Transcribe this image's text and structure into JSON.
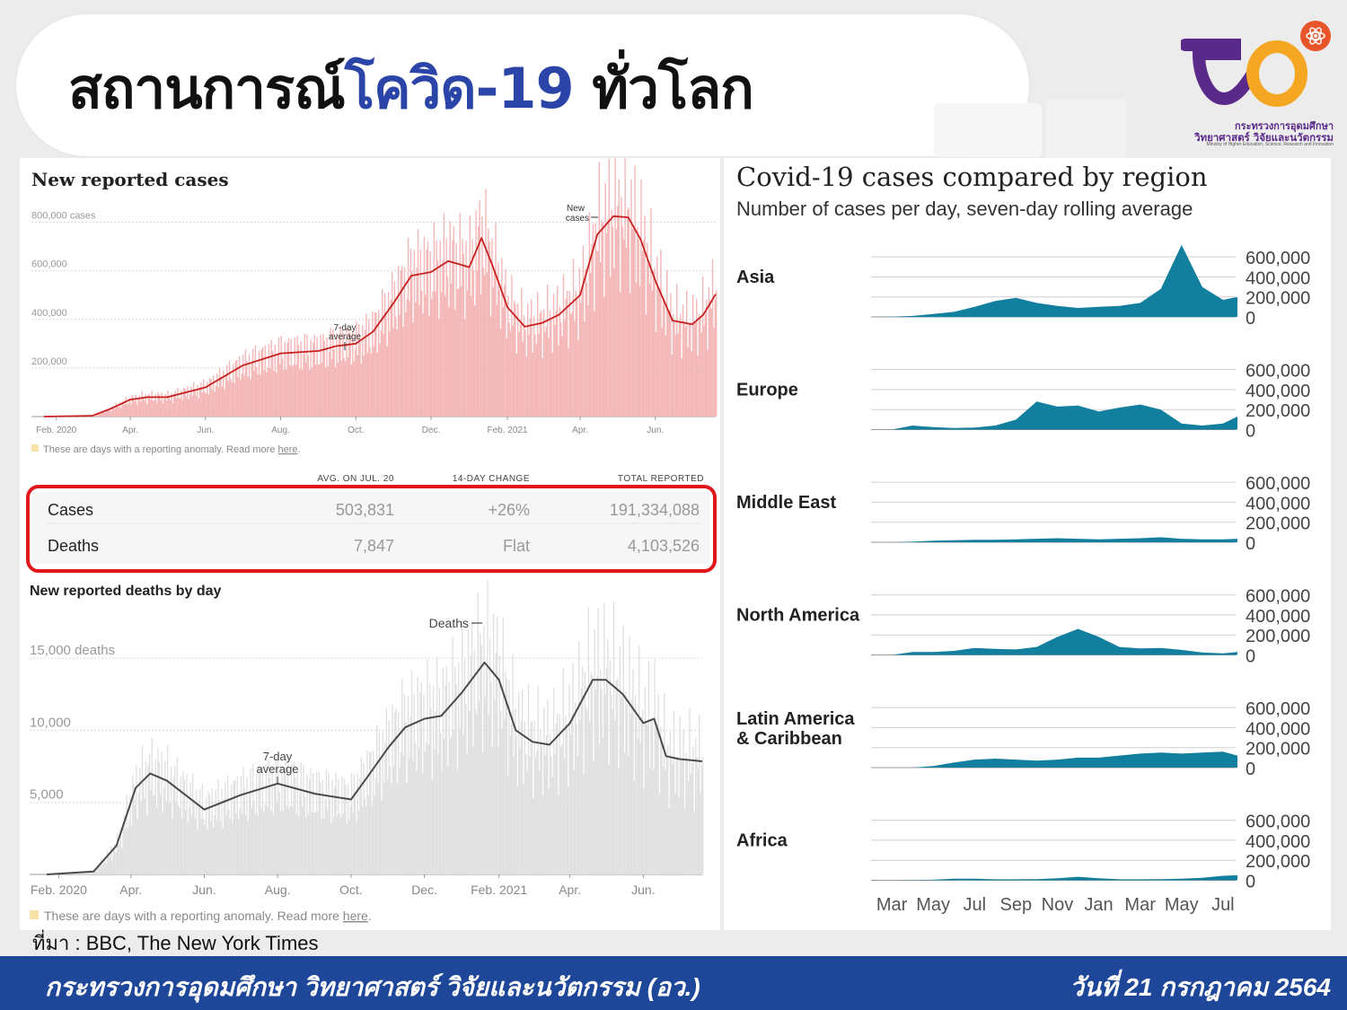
{
  "header": {
    "title_part1": "สถานการณ์",
    "title_part2": "โควิด-19",
    "title_part3": " ทั่วโลก"
  },
  "logo": {
    "line1": "กระทรวงการอุดมศึกษา",
    "line2": "วิทยาศาสตร์ วิจัยและนวัตกรรม",
    "line3": "Ministry of Higher Education, Science, Research and Innovation",
    "colors": {
      "purple": "#5a2a8a",
      "orange": "#f5a623",
      "red": "#e8552b"
    }
  },
  "source": "ที่มา : BBC, The New York Times",
  "footer": {
    "left": "กระทรวงการอุดมศึกษา วิทยาศาสตร์ วิจัยและนวัตกรรม (อว.)",
    "right": "วันที่ 21 กรกฎาคม 2564",
    "color": "#1f4799"
  },
  "anomaly_note": {
    "text": "These are days with a reporting anomaly. Read more ",
    "link": "here",
    "end": "."
  },
  "stats_table": {
    "headers": [
      "AVG. ON JUL. 20",
      "14-DAY CHANGE",
      "TOTAL REPORTED"
    ],
    "rows": [
      {
        "label": "Cases",
        "avg": "503,831",
        "change": "+26%",
        "total": "191,334,088"
      },
      {
        "label": "Deaths",
        "avg": "7,847",
        "change": "Flat",
        "total": "4,103,526"
      }
    ],
    "highlight_color": "#e0161b"
  },
  "chart_data": [
    {
      "type": "bar",
      "title": "New reported cases",
      "y_tick_labels": [
        "800,000 cases",
        "600,000",
        "400,000",
        "200,000"
      ],
      "y_ticks": [
        800000,
        600000,
        400000,
        200000
      ],
      "ylim": [
        0,
        850000
      ],
      "x_tick_labels": [
        "Feb. 2020",
        "Apr.",
        "Jun.",
        "Aug.",
        "Oct.",
        "Dec.",
        "Feb. 2021",
        "Apr.",
        "Jun."
      ],
      "annotations": [
        "7-day",
        "average",
        "New",
        "cases"
      ],
      "series": [
        {
          "kind": "daily bars",
          "color": "#f4b6b6"
        },
        {
          "kind": "7-day average line",
          "color": "#c8201f",
          "x": [
            "2020-01-22",
            "2020-03-01",
            "2020-03-15",
            "2020-04-01",
            "2020-04-15",
            "2020-05-01",
            "2020-06-01",
            "2020-07-01",
            "2020-08-01",
            "2020-09-01",
            "2020-09-15",
            "2020-10-01",
            "2020-10-15",
            "2020-11-01",
            "2020-11-15",
            "2020-12-01",
            "2020-12-15",
            "2021-01-01",
            "2021-01-11",
            "2021-01-20",
            "2021-02-01",
            "2021-02-15",
            "2021-03-01",
            "2021-03-15",
            "2021-04-01",
            "2021-04-15",
            "2021-04-28",
            "2021-05-10",
            "2021-05-20",
            "2021-06-01",
            "2021-06-15",
            "2021-07-01",
            "2021-07-10",
            "2021-07-20"
          ],
          "y": [
            0,
            3000,
            30000,
            70000,
            80000,
            80000,
            120000,
            210000,
            260000,
            270000,
            290000,
            300000,
            350000,
            470000,
            580000,
            595000,
            640000,
            615000,
            735000,
            620000,
            450000,
            370000,
            385000,
            420000,
            500000,
            750000,
            825000,
            820000,
            730000,
            560000,
            395000,
            380000,
            420000,
            503831
          ]
        }
      ]
    },
    {
      "type": "bar",
      "title": "New reported deaths by day",
      "y_tick_labels": [
        "15,000 deaths",
        "10,000",
        "5,000"
      ],
      "y_ticks": [
        15000,
        10000,
        5000
      ],
      "ylim": [
        0,
        17000
      ],
      "x_tick_labels": [
        "Feb. 2020",
        "Apr.",
        "Jun.",
        "Aug.",
        "Oct.",
        "Dec.",
        "Feb. 2021",
        "Apr.",
        "Jun."
      ],
      "annotations": [
        "Deaths",
        "7-day",
        "average"
      ],
      "series": [
        {
          "kind": "daily bars",
          "color": "#e0e0e0"
        },
        {
          "kind": "7-day average line",
          "color": "#4a4a4a",
          "x": [
            "2020-01-22",
            "2020-03-01",
            "2020-03-20",
            "2020-04-05",
            "2020-04-17",
            "2020-05-01",
            "2020-06-01",
            "2020-07-01",
            "2020-08-01",
            "2020-09-01",
            "2020-10-01",
            "2020-10-15",
            "2020-11-01",
            "2020-11-15",
            "2020-12-01",
            "2020-12-15",
            "2021-01-01",
            "2021-01-20",
            "2021-02-01",
            "2021-02-15",
            "2021-03-01",
            "2021-03-15",
            "2021-04-01",
            "2021-04-20",
            "2021-05-01",
            "2021-05-15",
            "2021-06-01",
            "2021-06-10",
            "2021-06-20",
            "2021-07-01",
            "2021-07-20"
          ],
          "y": [
            0,
            200,
            2000,
            6000,
            7000,
            6500,
            4500,
            5500,
            6300,
            5600,
            5200,
            6800,
            8800,
            10200,
            10800,
            11000,
            12600,
            14700,
            13500,
            10000,
            9200,
            9000,
            10500,
            13500,
            13500,
            12500,
            10500,
            10800,
            8200,
            8000,
            7847
          ]
        }
      ]
    },
    {
      "type": "area",
      "title": "Covid-19 cases compared by region",
      "subtitle": "Number of cases per day, seven-day rolling average",
      "y_ticks": [
        0,
        200000,
        400000,
        600000
      ],
      "y_tick_labels": [
        "600,000",
        "400,000",
        "200,000",
        "0"
      ],
      "ylim": [
        0,
        800000
      ],
      "x_tick_labels": [
        "Mar",
        "May",
        "Jul",
        "Sep",
        "Nov",
        "Jan",
        "Mar",
        "May",
        "Jul"
      ],
      "x_ticks_month_index": [
        1,
        3,
        5,
        7,
        9,
        11,
        13,
        15,
        17
      ],
      "color": "#127f9e",
      "x_month_index": [
        0,
        1,
        2,
        3,
        4,
        5,
        6,
        7,
        8,
        9,
        10,
        11,
        12,
        13,
        14,
        15,
        16,
        17,
        17.7
      ],
      "series": [
        {
          "name": "Asia",
          "values": [
            0,
            2000,
            10000,
            30000,
            50000,
            100000,
            160000,
            190000,
            140000,
            110000,
            90000,
            100000,
            110000,
            140000,
            280000,
            720000,
            300000,
            170000,
            200000
          ]
        },
        {
          "name": "Europe",
          "values": [
            0,
            0,
            40000,
            25000,
            15000,
            20000,
            40000,
            100000,
            280000,
            230000,
            240000,
            180000,
            220000,
            250000,
            200000,
            60000,
            40000,
            60000,
            130000
          ]
        },
        {
          "name": "Middle East",
          "values": [
            0,
            0,
            5000,
            15000,
            20000,
            25000,
            25000,
            30000,
            35000,
            40000,
            35000,
            30000,
            35000,
            40000,
            50000,
            35000,
            30000,
            30000,
            35000
          ]
        },
        {
          "name": "North America",
          "values": [
            0,
            0,
            30000,
            30000,
            40000,
            70000,
            60000,
            55000,
            80000,
            180000,
            260000,
            180000,
            80000,
            65000,
            70000,
            50000,
            25000,
            15000,
            30000
          ]
        },
        {
          "name": "Latin America & Caribbean",
          "values": [
            0,
            0,
            0,
            15000,
            50000,
            80000,
            90000,
            80000,
            70000,
            80000,
            100000,
            100000,
            120000,
            140000,
            150000,
            140000,
            150000,
            160000,
            120000
          ]
        },
        {
          "name": "Africa",
          "values": [
            0,
            0,
            2000,
            5000,
            15000,
            15000,
            10000,
            10000,
            12000,
            20000,
            35000,
            20000,
            10000,
            10000,
            12000,
            15000,
            25000,
            45000,
            50000
          ]
        }
      ]
    }
  ]
}
